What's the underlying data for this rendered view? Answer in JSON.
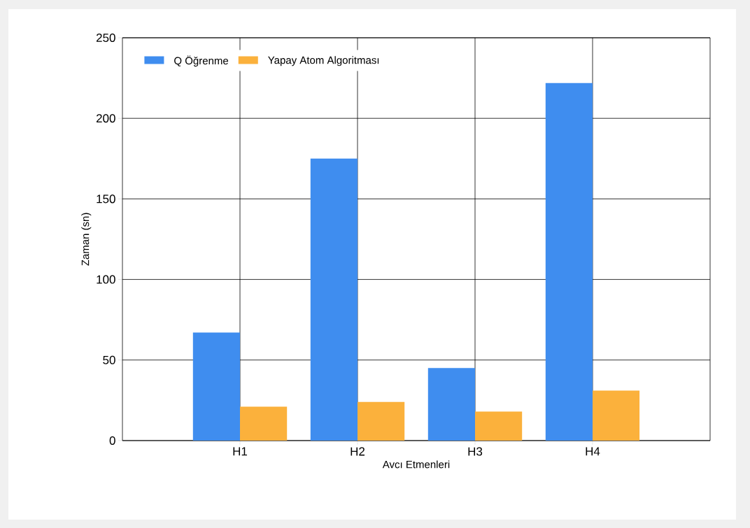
{
  "chart_data": {
    "type": "bar",
    "xlabel": "Avcı Etmenleri",
    "ylabel": "Zaman (sn)",
    "categories": [
      "H1",
      "H2",
      "H3",
      "H4"
    ],
    "series": [
      {
        "name": "Q Öğrenme",
        "color": "#3f8def",
        "values": [
          67,
          175,
          45,
          222
        ]
      },
      {
        "name": "Yapay Atom Algoritması",
        "color": "#fbb13c",
        "values": [
          21,
          24,
          18,
          31
        ]
      }
    ],
    "ylim": [
      0,
      250
    ],
    "yticks": [
      0,
      50,
      100,
      150,
      200,
      250
    ],
    "grid": true,
    "legend": "top left"
  }
}
